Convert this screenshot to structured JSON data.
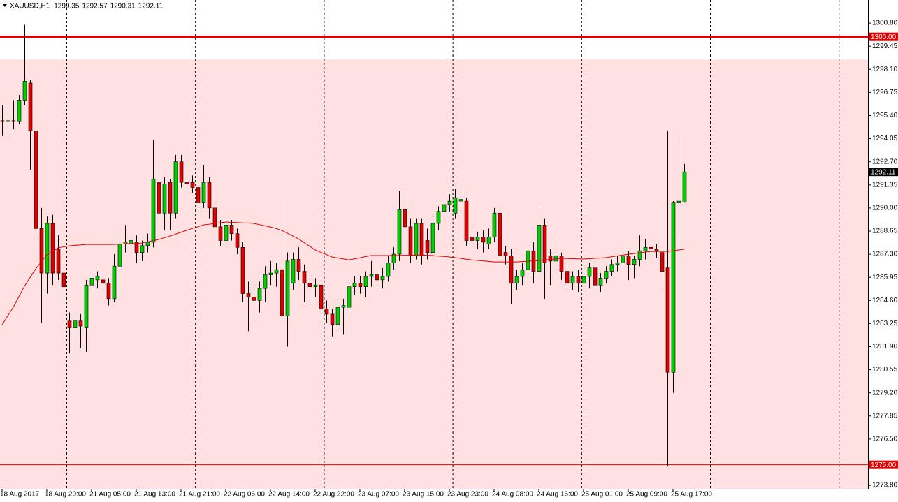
{
  "chart_data": {
    "type": "candlestick",
    "symbol": "XAUUSD,H1",
    "ylim": [
      1273.6,
      1302.15
    ],
    "yticks": [
      {
        "value": 1300.8,
        "label": "1300.80"
      },
      1299.45,
      {
        "value": 1298.1,
        "label": "1298.10"
      },
      1296.75,
      {
        "value": 1295.4,
        "label": "1295.40"
      },
      1294.05,
      {
        "value": 1292.7,
        "label": "1292.70"
      },
      1291.35,
      {
        "value": 1290,
        "label": "1290.00"
      },
      1288.65,
      {
        "value": 1287.3,
        "label": "1287.30"
      },
      1285.95,
      {
        "value": 1284.6,
        "label": "1284.60"
      },
      1283.25,
      {
        "value": 1281.9,
        "label": "1281.90"
      },
      1280.55,
      {
        "value": 1279.2,
        "label": "1279.20"
      },
      1277.85,
      {
        "value": 1276.5,
        "label": "1276.50"
      },
      {
        "value": 1273.8,
        "label": "1273.80"
      }
    ],
    "up_color": "#00d000",
    "down_color": "#e00000",
    "zone_top": 1298.67,
    "zone_color": "#ffe1e1",
    "levels": [
      {
        "value": 1300,
        "label": "1300.00",
        "color": "#e00000",
        "style": "thick"
      },
      {
        "value": 1275,
        "label": "1275.00",
        "color": "#e00000",
        "style": "thin"
      }
    ],
    "categories": [
      "18 Aug 2017",
      null,
      null,
      null,
      null,
      null,
      null,
      null,
      "18 Aug 20:00",
      null,
      null,
      null,
      null,
      null,
      null,
      null,
      "21 Aug 05:00",
      null,
      null,
      null,
      null,
      null,
      null,
      null,
      "21 Aug 13:00",
      null,
      null,
      null,
      null,
      null,
      null,
      null,
      "21 Aug 21:00",
      null,
      null,
      null,
      null,
      null,
      null,
      null,
      "22 Aug 06:00",
      null,
      null,
      null,
      null,
      null,
      null,
      null,
      "22 Aug 14:00",
      null,
      null,
      null,
      null,
      null,
      null,
      null,
      "22 Aug 22:00",
      null,
      null,
      null,
      null,
      null,
      null,
      null,
      "23 Aug 07:00",
      null,
      null,
      null,
      null,
      null,
      null,
      null,
      "23 Aug 15:00",
      null,
      null,
      null,
      null,
      null,
      null,
      null,
      "23 Aug 23:00",
      null,
      null,
      null,
      null,
      null,
      null,
      null,
      "24 Aug 08:00",
      null,
      null,
      null,
      null,
      null,
      null,
      null,
      "24 Aug 16:00",
      null,
      null,
      null,
      null,
      null,
      null,
      null,
      "25 Aug 01:00",
      null,
      null,
      null,
      null,
      null,
      null,
      null,
      "25 Aug 09:00",
      null,
      null,
      null,
      null,
      null,
      null,
      null,
      "25 Aug 17:00",
      null,
      null
    ],
    "ohlc": [
      [
        1295.1,
        1296.0,
        1294.2,
        1295.05
      ],
      [
        1295.05,
        1295.9,
        1294.3,
        1295.1
      ],
      [
        1295.1,
        1296.3,
        1294.6,
        1295.05
      ],
      [
        1295.05,
        1296.6,
        1294.9,
        1296.3
      ],
      [
        1296.3,
        1300.7,
        1296.0,
        1297.4
      ],
      [
        1297.3,
        1297.5,
        1292.2,
        1294.5
      ],
      [
        1294.5,
        1294.6,
        1288.2,
        1288.8
      ],
      [
        1288.8,
        1290.0,
        1283.3,
        1286.2
      ],
      [
        1286.2,
        1289.5,
        1285.0,
        1289.1
      ],
      [
        1289.1,
        1289.6,
        1285.5,
        1286.2
      ],
      [
        1287.6,
        1288.4,
        1285.8,
        1286.2
      ],
      [
        1286.2,
        1286.6,
        1284.6,
        1285.4
      ],
      [
        1283.4,
        1283.9,
        1281.5,
        1283.0
      ],
      [
        1283.0,
        1283.7,
        1280.5,
        1283.4
      ],
      [
        1283.4,
        1283.8,
        1281.8,
        1283.1
      ],
      [
        1283.0,
        1285.8,
        1281.6,
        1285.5
      ],
      [
        1285.5,
        1286.2,
        1285.0,
        1285.9
      ],
      [
        1285.8,
        1286.3,
        1285.3,
        1286.0
      ],
      [
        1285.8,
        1286.1,
        1285.2,
        1285.6
      ],
      [
        1285.6,
        1285.9,
        1284.3,
        1284.7
      ],
      [
        1284.7,
        1287.3,
        1284.5,
        1286.6
      ],
      [
        1286.6,
        1288.7,
        1286.4,
        1287.9
      ],
      [
        1287.9,
        1289.0,
        1287.4,
        1288.0
      ],
      [
        1287.9,
        1288.4,
        1287.3,
        1288.1
      ],
      [
        1288.0,
        1288.4,
        1286.8,
        1287.4
      ],
      [
        1287.4,
        1288.1,
        1286.9,
        1287.8
      ],
      [
        1287.8,
        1288.5,
        1287.4,
        1288.0
      ],
      [
        1288.0,
        1294.0,
        1287.7,
        1291.7
      ],
      [
        1291.5,
        1292.5,
        1289.5,
        1289.7
      ],
      [
        1289.7,
        1291.8,
        1288.7,
        1291.4
      ],
      [
        1291.5,
        1291.7,
        1288.7,
        1289.7
      ],
      [
        1289.7,
        1293.1,
        1289.4,
        1292.7
      ],
      [
        1292.7,
        1293.1,
        1291.2,
        1291.5
      ],
      [
        1291.5,
        1292.5,
        1291.0,
        1291.4
      ],
      [
        1291.5,
        1291.9,
        1290.9,
        1291.2
      ],
      [
        1291.2,
        1292.3,
        1290.0,
        1290.3
      ],
      [
        1290.3,
        1292.5,
        1290.0,
        1291.5
      ],
      [
        1291.5,
        1291.8,
        1289.4,
        1290.0
      ],
      [
        1290.0,
        1290.3,
        1287.6,
        1288.9
      ],
      [
        1288.9,
        1289.3,
        1287.8,
        1288.1
      ],
      [
        1288.1,
        1289.2,
        1287.7,
        1289.0
      ],
      [
        1289.0,
        1289.3,
        1288.1,
        1288.5
      ],
      [
        1288.5,
        1288.8,
        1287.3,
        1287.7
      ],
      [
        1287.7,
        1288.0,
        1284.5,
        1285.0
      ],
      [
        1285.0,
        1285.7,
        1282.8,
        1284.8
      ],
      [
        1284.8,
        1285.4,
        1283.5,
        1284.6
      ],
      [
        1284.6,
        1285.7,
        1283.9,
        1285.3
      ],
      [
        1285.3,
        1286.6,
        1284.5,
        1286.1
      ],
      [
        1286.1,
        1286.9,
        1285.5,
        1286.2
      ],
      [
        1286.2,
        1286.8,
        1285.4,
        1286.4
      ],
      [
        1286.4,
        1291.0,
        1283.5,
        1283.7
      ],
      [
        1283.7,
        1287.4,
        1281.9,
        1286.9
      ],
      [
        1285.6,
        1287.4,
        1285.2,
        1287.0
      ],
      [
        1287.0,
        1287.7,
        1285.8,
        1286.3
      ],
      [
        1286.3,
        1286.7,
        1284.5,
        1285.6
      ],
      [
        1285.6,
        1286.0,
        1284.3,
        1285.4
      ],
      [
        1285.4,
        1285.9,
        1284.8,
        1285.5
      ],
      [
        1285.5,
        1285.8,
        1283.8,
        1284.1
      ],
      [
        1284.1,
        1284.6,
        1283.3,
        1283.8
      ],
      [
        1283.8,
        1284.1,
        1282.5,
        1283.2
      ],
      [
        1283.2,
        1284.6,
        1282.7,
        1284.2
      ],
      [
        1284.2,
        1284.7,
        1282.6,
        1284.3
      ],
      [
        1284.2,
        1285.8,
        1283.6,
        1285.4
      ],
      [
        1285.4,
        1286.0,
        1284.9,
        1285.6
      ],
      [
        1285.6,
        1286.0,
        1285.0,
        1285.4
      ],
      [
        1285.4,
        1286.3,
        1284.8,
        1286.0
      ],
      [
        1286.0,
        1286.9,
        1285.4,
        1286.1
      ],
      [
        1286.1,
        1286.7,
        1285.5,
        1285.8
      ],
      [
        1285.8,
        1286.5,
        1285.3,
        1286.0
      ],
      [
        1286.0,
        1287.2,
        1285.7,
        1286.8
      ],
      [
        1286.8,
        1287.7,
        1286.4,
        1287.3
      ],
      [
        1287.3,
        1291.0,
        1286.9,
        1289.9
      ],
      [
        1289.9,
        1291.3,
        1288.5,
        1288.9
      ],
      [
        1288.9,
        1289.4,
        1286.8,
        1287.2
      ],
      [
        1287.2,
        1289.4,
        1287.0,
        1289.1
      ],
      [
        1289.1,
        1289.4,
        1286.7,
        1287.2
      ],
      [
        1288.1,
        1288.8,
        1287.0,
        1287.4
      ],
      [
        1287.4,
        1289.5,
        1287.1,
        1289.1
      ],
      [
        1289.1,
        1290.1,
        1288.7,
        1289.8
      ],
      [
        1289.8,
        1290.5,
        1289.4,
        1290.2
      ],
      [
        1290.2,
        1290.8,
        1289.8,
        1290.4
      ],
      [
        1289.7,
        1291.1,
        1289.4,
        1290.6
      ],
      [
        1290.4,
        1290.9,
        1289.8,
        1290.5
      ],
      [
        1290.4,
        1290.6,
        1287.8,
        1288.1
      ],
      [
        1288.3,
        1288.8,
        1287.7,
        1288.1
      ],
      [
        1288.1,
        1288.6,
        1287.6,
        1288.3
      ],
      [
        1288.3,
        1288.7,
        1287.4,
        1288.0
      ],
      [
        1287.9,
        1288.8,
        1287.6,
        1288.3
      ],
      [
        1288.3,
        1290.0,
        1288.0,
        1289.7
      ],
      [
        1289.7,
        1289.9,
        1286.8,
        1287.2
      ],
      [
        1287.4,
        1287.8,
        1286.7,
        1287.2
      ],
      [
        1287.2,
        1287.6,
        1284.4,
        1285.6
      ],
      [
        1285.6,
        1286.4,
        1285.2,
        1286.0
      ],
      [
        1286.0,
        1286.8,
        1285.5,
        1286.4
      ],
      [
        1286.4,
        1287.8,
        1286.0,
        1287.5
      ],
      [
        1287.5,
        1288.0,
        1285.6,
        1286.3
      ],
      [
        1286.3,
        1290.0,
        1285.8,
        1289.0
      ],
      [
        1289.0,
        1289.4,
        1284.7,
        1286.8
      ],
      [
        1287.2,
        1287.6,
        1285.5,
        1286.9
      ],
      [
        1286.9,
        1288.2,
        1286.2,
        1287.2
      ],
      [
        1287.2,
        1287.4,
        1285.8,
        1286.3
      ],
      [
        1286.3,
        1286.7,
        1285.2,
        1285.6
      ],
      [
        1285.6,
        1286.3,
        1285.2,
        1286.0
      ],
      [
        1286.0,
        1286.4,
        1285.1,
        1285.6
      ],
      [
        1285.6,
        1286.3,
        1285.1,
        1286.0
      ],
      [
        1286.0,
        1286.8,
        1285.3,
        1286.5
      ],
      [
        1286.5,
        1286.9,
        1285.1,
        1285.5
      ],
      [
        1285.5,
        1286.2,
        1285.1,
        1285.9
      ],
      [
        1285.9,
        1286.6,
        1285.6,
        1286.3
      ],
      [
        1286.3,
        1287.0,
        1286.0,
        1286.7
      ],
      [
        1286.7,
        1287.2,
        1286.3,
        1286.8
      ],
      [
        1286.8,
        1287.4,
        1286.5,
        1287.2
      ],
      [
        1287.2,
        1287.5,
        1285.8,
        1286.7
      ],
      [
        1286.7,
        1287.2,
        1285.9,
        1287.0
      ],
      [
        1287.0,
        1288.4,
        1286.6,
        1287.5
      ],
      [
        1287.5,
        1288.2,
        1287.0,
        1287.7
      ],
      [
        1287.7,
        1288.0,
        1287.2,
        1287.6
      ],
      [
        1287.6,
        1287.9,
        1287.1,
        1287.5
      ],
      [
        1287.4,
        1287.7,
        1285.2,
        1286.3
      ],
      [
        1286.5,
        1294.5,
        1274.9,
        1280.4
      ],
      [
        1280.4,
        1290.4,
        1279.2,
        1290.3
      ],
      [
        1290.3,
        1294.1,
        1288.3,
        1290.4
      ],
      [
        1290.35,
        1292.57,
        1290.31,
        1292.11
      ]
    ],
    "ma": {
      "color": "#e00000",
      "values": [
        1283.18,
        1283.69,
        1284.2,
        1284.82,
        1285.43,
        1285.94,
        1286.44,
        1286.85,
        1287.26,
        1287.46,
        1287.67,
        1287.73,
        1287.79,
        1287.82,
        1287.84,
        1287.87,
        1287.87,
        1287.87,
        1287.87,
        1287.87,
        1287.87,
        1287.89,
        1287.9,
        1287.92,
        1287.93,
        1287.95,
        1288.02,
        1288.09,
        1288.16,
        1288.26,
        1288.36,
        1288.47,
        1288.58,
        1288.69,
        1288.8,
        1288.9,
        1289.01,
        1289.05,
        1289.09,
        1289.14,
        1289.18,
        1289.16,
        1289.15,
        1289.13,
        1289.12,
        1289.1,
        1289.03,
        1288.96,
        1288.89,
        1288.8,
        1288.69,
        1288.53,
        1288.36,
        1288.2,
        1287.98,
        1287.77,
        1287.55,
        1287.41,
        1287.28,
        1287.14,
        1287.08,
        1287.03,
        1286.97,
        1287.03,
        1287.09,
        1287.16,
        1287.22,
        1287.22,
        1287.22,
        1287.22,
        1287.22,
        1287.23,
        1287.24,
        1287.24,
        1287.25,
        1287.26,
        1287.24,
        1287.22,
        1287.19,
        1287.17,
        1287.14,
        1287.1,
        1287.06,
        1287.01,
        1286.97,
        1286.94,
        1286.91,
        1286.88,
        1286.85,
        1286.85,
        1286.85,
        1286.85,
        1286.85,
        1286.87,
        1286.89,
        1286.91,
        1286.93,
        1286.96,
        1286.99,
        1287.03,
        1287.06,
        1287.05,
        1287.04,
        1287.03,
        1287.02,
        1287.04,
        1287.06,
        1287.08,
        1287.1,
        1287.15,
        1287.2,
        1287.25,
        1287.3,
        1287.34,
        1287.38,
        1287.42,
        1287.46,
        1287.46,
        1287.46,
        1287.46,
        1287.5,
        1287.55,
        1287.59
      ]
    }
  }
}
